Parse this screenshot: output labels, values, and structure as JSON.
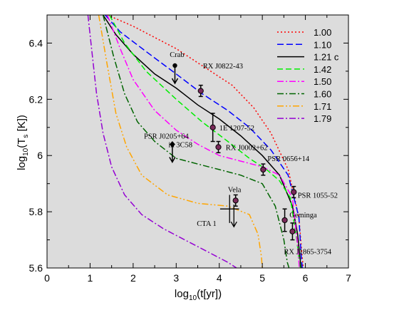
{
  "chart_data": {
    "type": "line",
    "xlabel_base": "log",
    "xlabel_sub": "10",
    "xlabel_arg": "(t[yr])",
    "ylabel_base": "log",
    "ylabel_sub": "10",
    "ylabel_arg": "(T",
    "ylabel_arg_sub": "s",
    "ylabel_tail": " [K])",
    "xlim": [
      0,
      7
    ],
    "ylim": [
      5.6,
      6.5
    ],
    "xticks": [
      "0",
      "1",
      "2",
      "3",
      "4",
      "5",
      "6",
      "7"
    ],
    "yticks": [
      "5.6",
      "5.8",
      "6",
      "6.2",
      "6.4"
    ],
    "grid": false,
    "legend_position": "top-right",
    "series": [
      {
        "name": "1.00",
        "color": "#ff0000",
        "dash": "2,3",
        "x": [
          1.4,
          2.0,
          3.0,
          3.6,
          4.3,
          4.8,
          5.2,
          5.6,
          5.85,
          5.92,
          5.95
        ],
        "y": [
          6.5,
          6.46,
          6.38,
          6.32,
          6.25,
          6.17,
          6.08,
          5.95,
          5.78,
          5.65,
          5.6
        ]
      },
      {
        "name": "1.10",
        "color": "#0000ff",
        "dash": "9,4",
        "x": [
          1.35,
          1.7,
          2.3,
          3.0,
          3.6,
          4.2,
          4.7,
          5.2,
          5.6,
          5.85,
          5.9,
          5.93
        ],
        "y": [
          6.5,
          6.44,
          6.37,
          6.29,
          6.22,
          6.16,
          6.1,
          6.02,
          5.93,
          5.78,
          5.65,
          5.6
        ]
      },
      {
        "name": "1.21 c",
        "color": "#000000",
        "dash": "",
        "x": [
          1.3,
          1.6,
          2.0,
          2.5,
          3.0,
          3.5,
          4.0,
          4.5,
          5.0,
          5.4,
          5.7,
          5.82,
          5.88,
          5.9
        ],
        "y": [
          6.5,
          6.43,
          6.36,
          6.29,
          6.24,
          6.18,
          6.13,
          6.07,
          6.0,
          5.93,
          5.82,
          5.72,
          5.63,
          5.6
        ]
      },
      {
        "name": "1.42",
        "color": "#00ee00",
        "dash": "8,4",
        "x": [
          1.45,
          1.8,
          2.3,
          3.0,
          3.6,
          4.2,
          4.7,
          5.1,
          5.4,
          5.65,
          5.8,
          5.86,
          5.88
        ],
        "y": [
          6.5,
          6.4,
          6.3,
          6.2,
          6.12,
          6.05,
          5.99,
          5.95,
          5.91,
          5.85,
          5.7,
          5.62,
          5.6
        ]
      },
      {
        "name": "1.50",
        "color": "#ff00ff",
        "dash": "9,3,2,3",
        "x": [
          1.4,
          1.7,
          2.0,
          2.5,
          3.0,
          3.5,
          4.0,
          4.5,
          5.0,
          5.4,
          5.7,
          5.82,
          5.86
        ],
        "y": [
          6.5,
          6.38,
          6.27,
          6.16,
          6.09,
          6.04,
          6.0,
          5.98,
          5.96,
          5.93,
          5.85,
          5.68,
          5.6
        ]
      },
      {
        "name": "1.60",
        "color": "#006400",
        "dash": "9,3,2,3",
        "x": [
          1.3,
          1.55,
          1.8,
          2.1,
          2.5,
          3.0,
          3.5,
          4.0,
          4.5,
          5.0,
          5.3,
          5.5,
          5.58,
          5.62
        ],
        "y": [
          6.5,
          6.35,
          6.22,
          6.12,
          6.05,
          5.99,
          5.97,
          5.95,
          5.93,
          5.9,
          5.82,
          5.7,
          5.62,
          5.6
        ]
      },
      {
        "name": "1.71",
        "color": "#ffa500",
        "dash": "9,3,2,3,2,3",
        "x": [
          1.2,
          1.4,
          1.6,
          1.85,
          2.2,
          2.8,
          3.5,
          4.2,
          4.7,
          4.9,
          4.98,
          5.0
        ],
        "y": [
          6.5,
          6.32,
          6.15,
          6.03,
          5.93,
          5.86,
          5.83,
          5.82,
          5.79,
          5.72,
          5.64,
          5.6
        ]
      },
      {
        "name": "1.79",
        "color": "#9400d3",
        "dash": "9,3,2,3",
        "x": [
          0.95,
          1.05,
          1.15,
          1.3,
          1.5,
          1.8,
          2.2,
          2.7,
          3.2,
          3.7,
          4.2,
          4.4
        ],
        "y": [
          6.5,
          6.36,
          6.22,
          6.08,
          5.96,
          5.86,
          5.79,
          5.74,
          5.7,
          5.66,
          5.62,
          5.6
        ]
      }
    ],
    "points": [
      {
        "label": "RX J0822-43",
        "x": 3.57,
        "y": 6.23,
        "err": 0.02,
        "lx": 3.62,
        "ly": 6.32
      },
      {
        "label": "1E 1207-52",
        "x": 3.85,
        "y": 6.1,
        "err": 0.05,
        "lx": 4.0,
        "ly": 6.1
      },
      {
        "label": "RX J0002+62",
        "x": 3.98,
        "y": 6.03,
        "err": 0.02,
        "lx": 4.15,
        "ly": 6.03
      },
      {
        "label": "PSR 0656+14",
        "x": 5.02,
        "y": 5.95,
        "err": 0.02,
        "lx": 5.12,
        "ly": 5.99
      },
      {
        "label": "Vela",
        "x": 4.38,
        "y": 5.84,
        "err": 0.02,
        "lx": 4.2,
        "ly": 5.88
      },
      {
        "label": "PSR 1055-52",
        "x": 5.73,
        "y": 5.87,
        "err": 0.02,
        "lx": 5.82,
        "ly": 5.86
      },
      {
        "label": "Geminga",
        "x": 5.52,
        "y": 5.77,
        "err": 0.04,
        "lx": 5.63,
        "ly": 5.79
      },
      {
        "label": "RX J1865-3754",
        "x": 5.7,
        "y": 5.73,
        "err": 0.03,
        "lx": 5.5,
        "ly": 5.66
      }
    ],
    "upper_limits": [
      {
        "label": "Crab",
        "x": 2.97,
        "y": 6.32,
        "marker": "circle",
        "lx": 2.85,
        "ly": 6.36
      },
      {
        "label": "PSR J0205+64",
        "label2": "in 3C58",
        "x": 2.91,
        "y": 6.04,
        "marker": "diamond",
        "lx": 2.25,
        "ly": 6.07,
        "lx2": 2.82,
        "ly2": 6.04
      }
    ],
    "cross": {
      "label": "CTA 1",
      "x": 4.24,
      "y": 5.81,
      "dx": 0.22,
      "dy": 0.05,
      "lx": 3.48,
      "ly": 5.76
    }
  }
}
